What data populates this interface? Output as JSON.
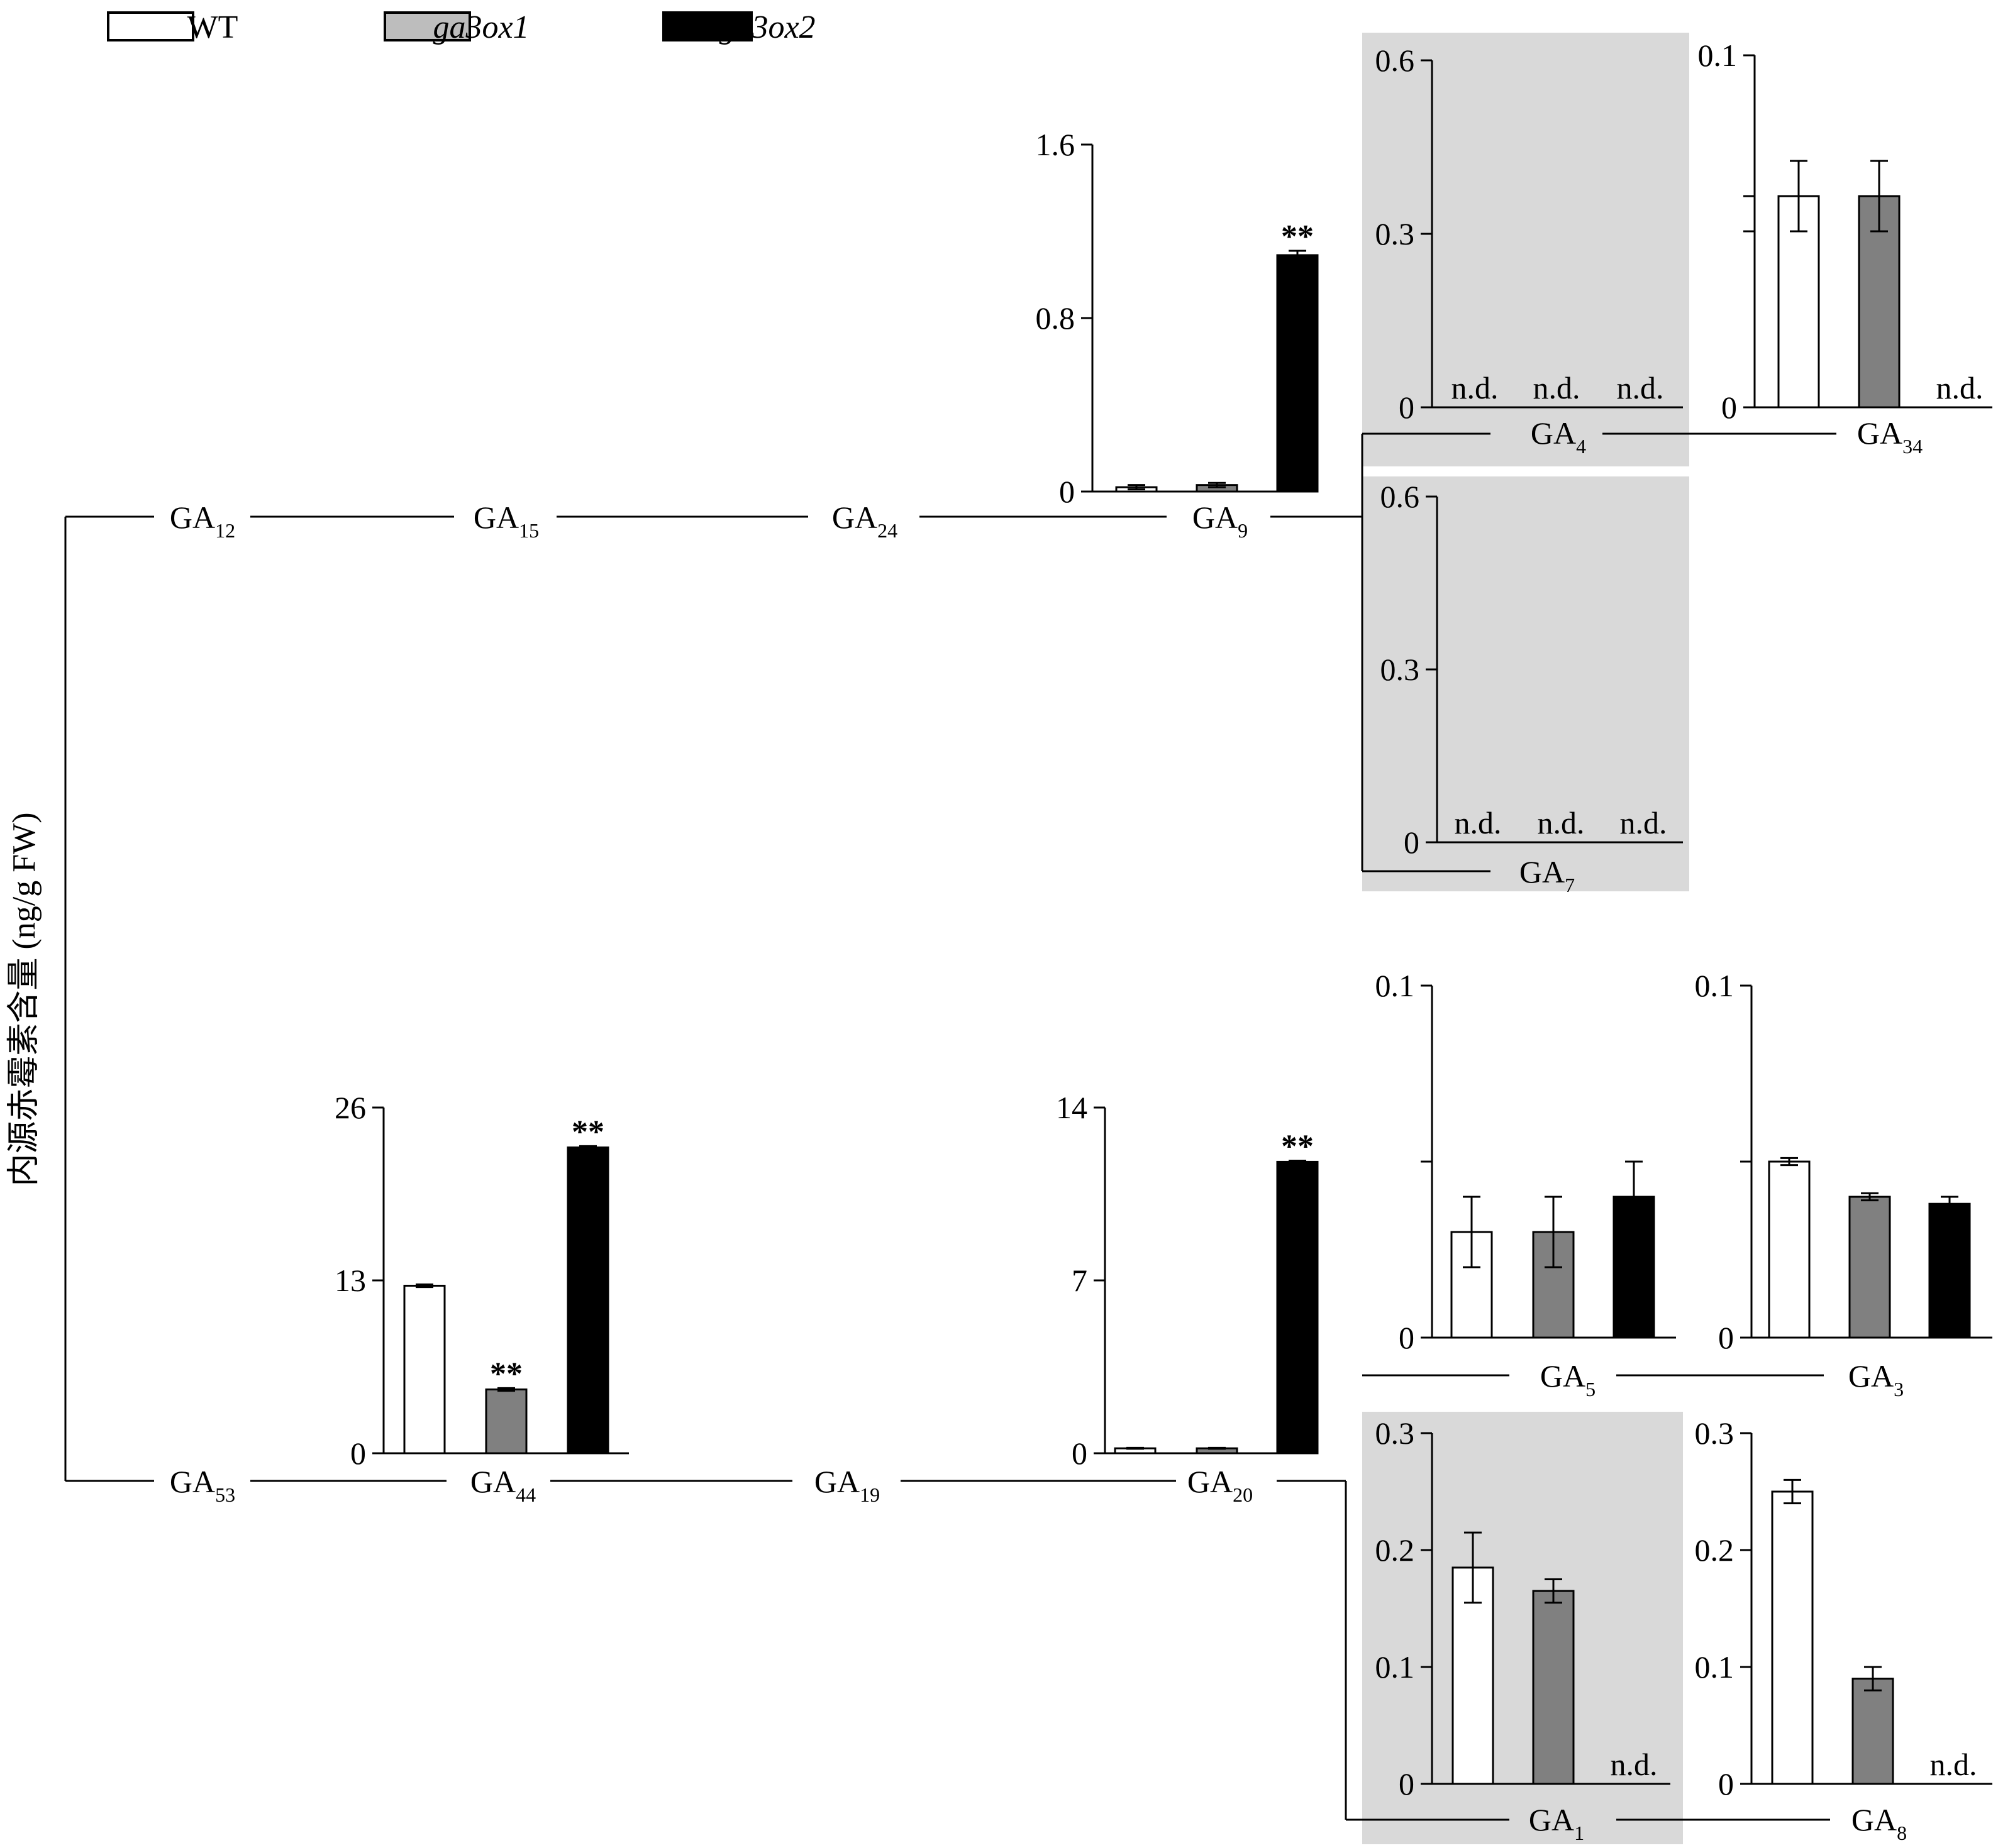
{
  "ylabel": "内源赤霉素含量 (ng/g FW)",
  "legend": [
    {
      "label": "WT",
      "italic": false,
      "fill": "#ffffff"
    },
    {
      "label": "ga3ox1",
      "italic": true,
      "fill": "#bdbdbd"
    },
    {
      "label": "ga3ox2",
      "italic": true,
      "fill": "#000000"
    }
  ],
  "colors": {
    "WT": "#ffffff",
    "ga3ox1_bar": "#808080",
    "ga3ox2": "#000000",
    "shade": "#d9d9d9"
  },
  "nd_label": "n.d.",
  "sig_label": "**",
  "pathway_nodes": {
    "GA12": {
      "base": "GA",
      "sub": "12"
    },
    "GA15": {
      "base": "GA",
      "sub": "15"
    },
    "GA24": {
      "base": "GA",
      "sub": "24"
    },
    "GA53": {
      "base": "GA",
      "sub": "53"
    },
    "GA19": {
      "base": "GA",
      "sub": "19"
    }
  },
  "chart_data": [
    {
      "id": "GA9",
      "type": "bar",
      "title": {
        "base": "GA",
        "sub": "9"
      },
      "categories": [
        "WT",
        "ga3ox1",
        "ga3ox2"
      ],
      "ylim": [
        0,
        1.6
      ],
      "ticks": [
        "0",
        "0.8",
        "1.6"
      ],
      "minor_ticks": [],
      "values": [
        0.02,
        0.03,
        1.09
      ],
      "errors": [
        0.01,
        0.01,
        0.02
      ],
      "nd": [
        false,
        false,
        false
      ],
      "sig": [
        false,
        false,
        true
      ],
      "shaded": false
    },
    {
      "id": "GA4",
      "type": "bar",
      "title": {
        "base": "GA",
        "sub": "4"
      },
      "categories": [
        "WT",
        "ga3ox1",
        "ga3ox2"
      ],
      "ylim": [
        0,
        0.6
      ],
      "ticks": [
        "0",
        "0.3",
        "0.6"
      ],
      "minor_ticks": [],
      "values": [
        null,
        null,
        null
      ],
      "errors": [
        0,
        0,
        0
      ],
      "nd": [
        true,
        true,
        true
      ],
      "sig": [
        false,
        false,
        false
      ],
      "shaded": true
    },
    {
      "id": "GA34",
      "type": "bar",
      "title": {
        "base": "GA",
        "sub": "34"
      },
      "categories": [
        "WT",
        "ga3ox1",
        "ga3ox2"
      ],
      "ylim": [
        0,
        0.1
      ],
      "ticks": [
        "0",
        "",
        "0.1"
      ],
      "minor_ticks": [
        0.06
      ],
      "values": [
        0.06,
        0.06,
        null
      ],
      "errors": [
        0.01,
        0.01,
        0
      ],
      "nd": [
        false,
        false,
        true
      ],
      "sig": [
        false,
        false,
        false
      ],
      "shaded": false
    },
    {
      "id": "GA7",
      "type": "bar",
      "title": {
        "base": "GA",
        "sub": "7"
      },
      "categories": [
        "WT",
        "ga3ox1",
        "ga3ox2"
      ],
      "ylim": [
        0,
        0.6
      ],
      "ticks": [
        "0",
        "0.3",
        "0.6"
      ],
      "minor_ticks": [],
      "values": [
        null,
        null,
        null
      ],
      "errors": [
        0,
        0,
        0
      ],
      "nd": [
        true,
        true,
        true
      ],
      "sig": [
        false,
        false,
        false
      ],
      "shaded": true
    },
    {
      "id": "GA44",
      "type": "bar",
      "title": {
        "base": "GA",
        "sub": "44"
      },
      "categories": [
        "WT",
        "ga3ox1",
        "ga3ox2"
      ],
      "ylim": [
        0,
        26
      ],
      "ticks": [
        "0",
        "13",
        "26"
      ],
      "minor_ticks": [],
      "values": [
        12.6,
        4.8,
        23.0
      ],
      "errors": [
        0.1,
        0.1,
        0.1
      ],
      "nd": [
        false,
        false,
        false
      ],
      "sig": [
        false,
        true,
        true
      ],
      "shaded": false
    },
    {
      "id": "GA20",
      "type": "bar",
      "title": {
        "base": "GA",
        "sub": "20"
      },
      "categories": [
        "WT",
        "ga3ox1",
        "ga3ox2"
      ],
      "ylim": [
        0,
        14
      ],
      "ticks": [
        "0",
        "7",
        "14"
      ],
      "minor_ticks": [],
      "values": [
        0.2,
        0.2,
        11.8
      ],
      "errors": [
        0.02,
        0.02,
        0.05
      ],
      "nd": [
        false,
        false,
        false
      ],
      "sig": [
        false,
        false,
        true
      ],
      "shaded": false
    },
    {
      "id": "GA5",
      "type": "bar",
      "title": {
        "base": "GA",
        "sub": "5"
      },
      "categories": [
        "WT",
        "ga3ox1",
        "ga3ox2"
      ],
      "ylim": [
        0,
        0.1
      ],
      "ticks": [
        "0",
        "",
        "0.1"
      ],
      "minor_ticks": [
        0.05
      ],
      "values": [
        0.03,
        0.03,
        0.04
      ],
      "errors": [
        0.01,
        0.01,
        0.01
      ],
      "nd": [
        false,
        false,
        false
      ],
      "sig": [
        false,
        false,
        false
      ],
      "shaded": false
    },
    {
      "id": "GA3",
      "type": "bar",
      "title": {
        "base": "GA",
        "sub": "3"
      },
      "categories": [
        "WT",
        "ga3ox1",
        "ga3ox2"
      ],
      "ylim": [
        0,
        0.1
      ],
      "ticks": [
        "0",
        "",
        "0.1"
      ],
      "minor_ticks": [
        0.05
      ],
      "values": [
        0.05,
        0.04,
        0.038
      ],
      "errors": [
        0.001,
        0.001,
        0.002
      ],
      "nd": [
        false,
        false,
        false
      ],
      "sig": [
        false,
        false,
        false
      ],
      "shaded": false
    },
    {
      "id": "GA1",
      "type": "bar",
      "title": {
        "base": "GA",
        "sub": "1"
      },
      "categories": [
        "WT",
        "ga3ox1",
        "ga3ox2"
      ],
      "ylim": [
        0,
        0.3
      ],
      "ticks": [
        "0",
        "0.1",
        "0.2",
        "0.3"
      ],
      "minor_ticks": [],
      "values": [
        0.185,
        0.165,
        null
      ],
      "errors": [
        0.03,
        0.01,
        0
      ],
      "nd": [
        false,
        false,
        true
      ],
      "sig": [
        false,
        false,
        false
      ],
      "shaded": true
    },
    {
      "id": "GA8",
      "type": "bar",
      "title": {
        "base": "GA",
        "sub": "8"
      },
      "categories": [
        "WT",
        "ga3ox1",
        "ga3ox2"
      ],
      "ylim": [
        0,
        0.3
      ],
      "ticks": [
        "0",
        "0.1",
        "0.2",
        "0.3"
      ],
      "minor_ticks": [],
      "values": [
        0.25,
        0.09,
        null
      ],
      "errors": [
        0.01,
        0.01,
        0
      ],
      "nd": [
        false,
        false,
        true
      ],
      "sig": [
        false,
        false,
        false
      ],
      "shaded": false
    }
  ]
}
